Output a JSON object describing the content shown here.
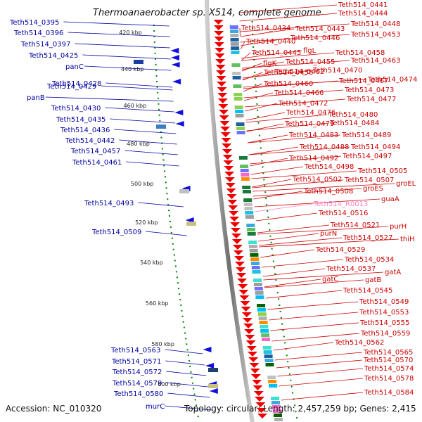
{
  "title": "Thermoanaerobacter sp. X514, complete genome",
  "footer": {
    "accession": "Accession: NC_010320",
    "topology": "Topology: circular; Length: 2,457,259 bp; Genes: 2,415"
  },
  "scale_ticks": [
    "420 kbp",
    "440 kbp",
    "460 kbp",
    "480 kbp",
    "500 kbp",
    "520 kbp",
    "540 kbp",
    "560 kbp",
    "580 kbp",
    "600 kbp"
  ],
  "left_labels": [
    "Teth514_0395",
    "Teth514_0396",
    "Teth514_0397",
    "Teth514_0425",
    "panC",
    "Teth514_0428",
    "panB",
    "Teth514_0429",
    "Teth514_0430",
    "Teth514_0435",
    "Teth514_0436",
    "Teth514_0442",
    "Teth514_0457",
    "Teth514_0461",
    "Teth514_0493",
    "Teth514_0509",
    "Teth514_0563",
    "Teth514_0571",
    "Teth514_0572",
    "Teth514_0579",
    "Teth514_0580",
    "murC"
  ],
  "right_labels": [
    "Teth514_0441",
    "Teth514_0444",
    "Teth514_0448",
    "Teth514_0434",
    "Teth514_0443",
    "Teth514_0453",
    "Teth514_0446",
    "Teth514_0440",
    "flgL",
    "Teth514_0445",
    "Teth514_0458",
    "flgK",
    "Teth514_0455",
    "Teth514_0463",
    "Teth514_0462",
    "Teth514_0470",
    "Teth514_0456",
    "Teth514_0474",
    "Teth514_0460",
    "Teth514_0467",
    "Teth514_0473",
    "Teth514_0466",
    "Teth514_0477",
    "Teth514_0472",
    "Teth514_0476",
    "Teth514_0480",
    "Teth514_0479",
    "Teth514_0484",
    "Teth514_0483",
    "Teth514_0489",
    "Teth514_0488",
    "Teth514_0494",
    "Teth514_0492",
    "Teth514_0497",
    "Teth514_0498",
    "Teth514_0505",
    "Teth514_0502",
    "Teth514_0507",
    "groEL",
    "groES",
    "Teth514_0508",
    "guaA",
    "Teth514_R0013",
    "Teth514_0516",
    "purH",
    "Teth514_0521",
    "purN",
    "Teth514_0527",
    "thiH",
    "Teth514_0529",
    "Teth514_0534",
    "gatA",
    "Teth514_0537",
    "gatC",
    "gatB",
    "Teth514_0545",
    "Teth514_0549",
    "Teth514_0553",
    "Teth514_0555",
    "Teth514_0559",
    "Teth514_0562",
    "Teth514_0565",
    "Teth514_0570",
    "Teth514_0574",
    "Teth514_0578",
    "Teth514_0584"
  ],
  "colors": {
    "forward_gene": "#ee0000",
    "reverse_gene": "#1010dd",
    "label_blue": "#0000a0",
    "label_red": "#cc0000",
    "scale_dots": "#008000",
    "backbone": "#888888"
  }
}
